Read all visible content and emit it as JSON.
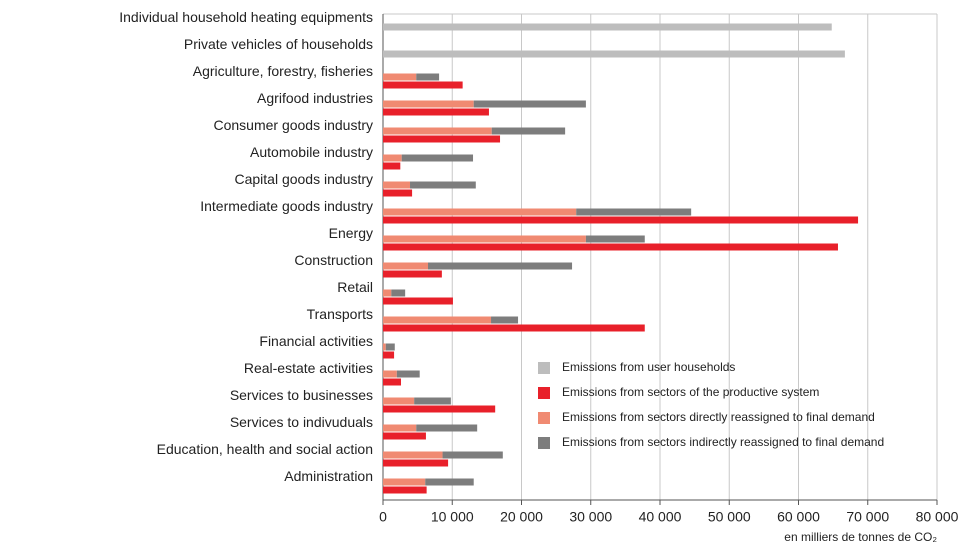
{
  "chart_data": {
    "type": "bar",
    "orientation": "horizontal",
    "categories": [
      "Individual household heating equipments",
      "Private vehicles of households",
      "Agriculture, forestry, fisheries",
      "Agrifood industries",
      "Consumer goods industry",
      "Automobile industry",
      "Capital goods industry",
      "Intermediate goods industry",
      "Energy",
      "Construction",
      "Retail",
      "Transports",
      "Financial activities",
      "Real-estate activities",
      "Services to businesses",
      "Services to indivuduals",
      "Education, health and social action",
      "Administration"
    ],
    "series": [
      {
        "name": "Emissions from user households",
        "color": "#bdbdbd",
        "values": [
          64800,
          66700,
          null,
          null,
          null,
          null,
          null,
          null,
          null,
          null,
          null,
          null,
          null,
          null,
          null,
          null,
          null,
          null
        ]
      },
      {
        "name": "Emissions from sectors of the productive system",
        "color": "#e8202a",
        "values": [
          null,
          null,
          11500,
          15300,
          16900,
          2500,
          4200,
          68600,
          65700,
          8500,
          10100,
          37800,
          1600,
          2600,
          16200,
          6200,
          9400,
          6300
        ]
      },
      {
        "name": "Emissions from sectors directly reassigned to final demand",
        "color": "#f08a72",
        "values": [
          null,
          null,
          4800,
          13100,
          15700,
          2700,
          3900,
          27900,
          29300,
          6500,
          1200,
          15600,
          400,
          2000,
          4500,
          4800,
          8600,
          6100
        ]
      },
      {
        "name": "Emissions from sectors indirectly reassigned to final demand",
        "color": "#7d7d7d",
        "values": [
          null,
          null,
          3300,
          16200,
          10600,
          10300,
          9500,
          16600,
          8500,
          20800,
          2000,
          3900,
          1300,
          3300,
          5300,
          8800,
          8700,
          7000
        ]
      }
    ],
    "xlim": [
      0,
      80000
    ],
    "xticks": [
      0,
      {
        "value": 10000,
        "label": "10 000"
      },
      {
        "value": 20000,
        "label": "20 000"
      },
      {
        "value": 30000,
        "label": "30 000"
      },
      {
        "value": 40000,
        "label": "40 000"
      },
      {
        "value": 50000,
        "label": "50 000"
      },
      {
        "value": 60000,
        "label": "60 000"
      },
      {
        "value": 70000,
        "label": "70 000"
      },
      {
        "value": 80000,
        "label": "80 000"
      }
    ],
    "xlabel": "en milliers de tonnes de CO₂",
    "grid": true,
    "legend": "lower right"
  }
}
